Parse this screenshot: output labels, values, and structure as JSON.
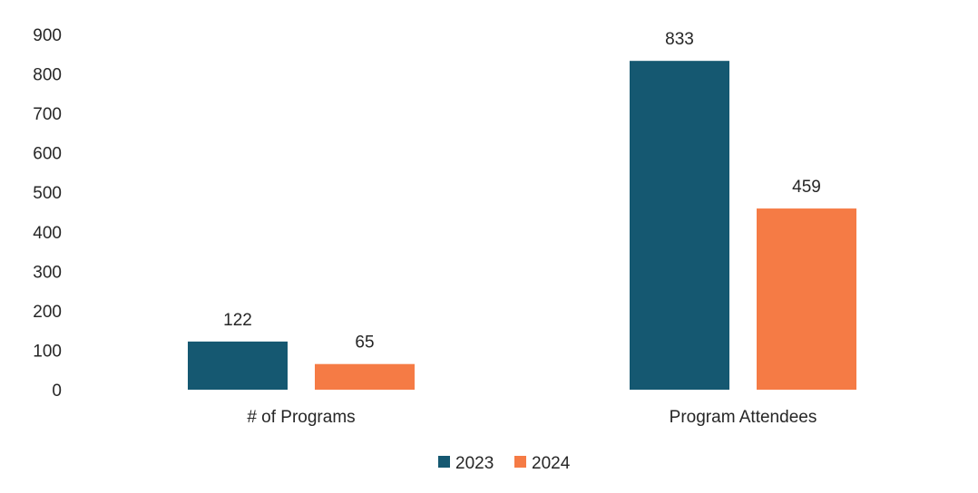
{
  "chart_data": {
    "type": "bar",
    "categories": [
      "# of Programs",
      "Program Attendees"
    ],
    "series": [
      {
        "name": "2023",
        "values": [
          122,
          833
        ],
        "color": "#155871"
      },
      {
        "name": "2024",
        "values": [
          65,
          459
        ],
        "color": "#f57b45"
      }
    ],
    "ylim": [
      0,
      900
    ],
    "yticks": [
      0,
      100,
      200,
      300,
      400,
      500,
      600,
      700,
      800,
      900
    ],
    "grid": false,
    "legend": "bottom",
    "data_labels": true
  }
}
